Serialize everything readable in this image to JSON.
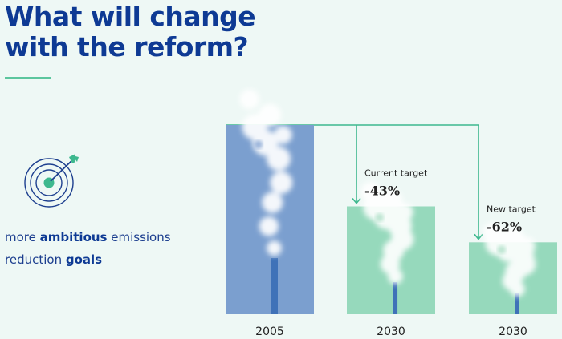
{
  "page": {
    "title_line1": "What will change",
    "title_line2": "with the reform?",
    "goal": {
      "prefix": "more ",
      "bold1": "ambitious",
      "mid": " emissions",
      "line2": "reduction ",
      "bold2": "goals"
    },
    "icons": [
      "target-icon",
      "arrow-icon",
      "smoke-icon",
      "chimney-icon"
    ]
  },
  "colors": {
    "title": "#0e3a94",
    "accent": "#5cc69e",
    "baseline_bar": "#7b9fcf",
    "target_bar": "#96d9bc",
    "connector": "#3db88e",
    "chimney": "#3f72b8"
  },
  "chart_data": {
    "type": "bar",
    "title": "",
    "categories": [
      "2005",
      "2030",
      "2030"
    ],
    "values": [
      100,
      57,
      38
    ],
    "annotations": [
      {
        "category_index": 1,
        "label": "Current target",
        "value_text": "-43%"
      },
      {
        "category_index": 2,
        "label": "New target",
        "value_text": "-62%"
      }
    ],
    "ylim": [
      0,
      100
    ],
    "grid": false,
    "legend": "none"
  }
}
